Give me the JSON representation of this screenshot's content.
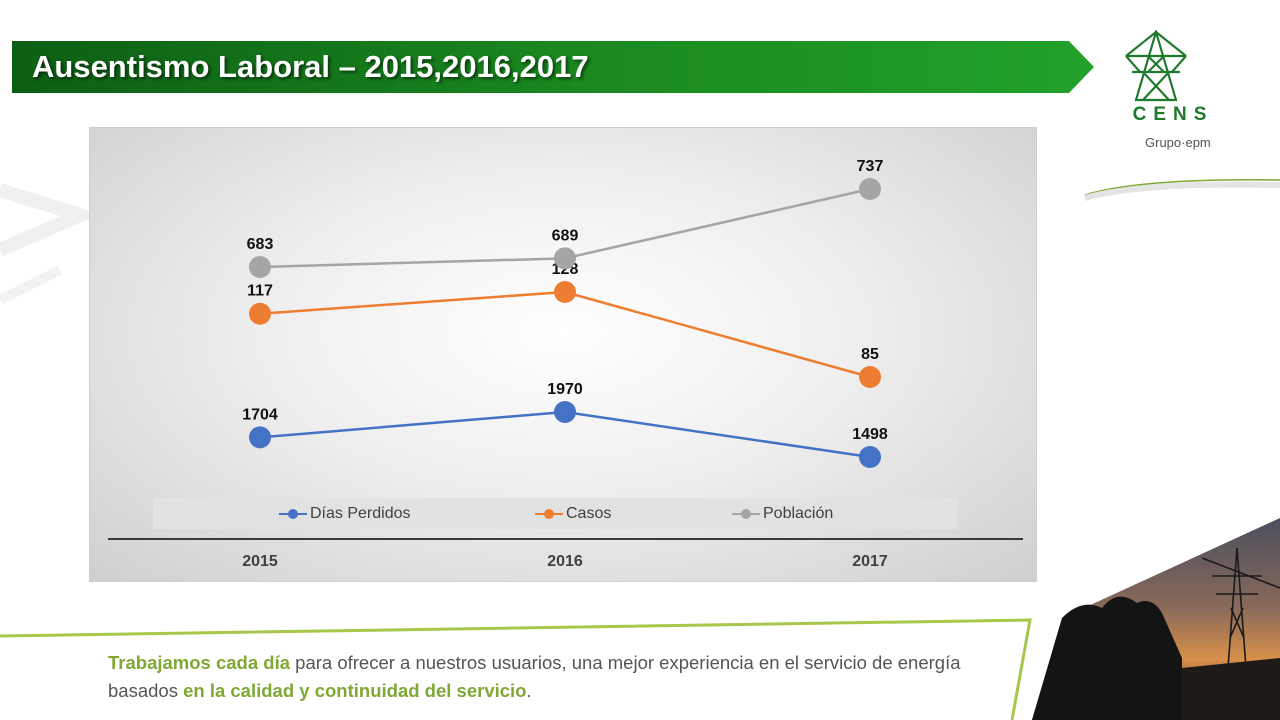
{
  "slide": {
    "title": "Ausentismo Laboral – 2015,2016,2017",
    "footer": {
      "part1": "Trabajamos cada día",
      "part2": " para ofrecer a nuestros usuarios, una mejor experiencia en el servicio de energía basados ",
      "part3": "en la calidad y continuidad del servicio",
      "part4": "."
    }
  },
  "logo": {
    "name": "CENS",
    "subtitle": "Grupo·epm",
    "icon": "transmission-tower-icon"
  },
  "colors": {
    "banner_green": "#1a8a20",
    "accent_green": "#7fa834",
    "series_dias": "#4472c4",
    "series_casos": "#ed7d31",
    "series_poblacion": "#a5a5a5"
  },
  "chart_data": {
    "type": "line",
    "categories": [
      "2015",
      "2016",
      "2017"
    ],
    "series": [
      {
        "name": "Días Perdidos",
        "values": [
          1704,
          1970,
          1498
        ],
        "color": "#4472c4"
      },
      {
        "name": "Casos",
        "values": [
          117,
          128,
          85
        ],
        "color": "#ed7d31"
      },
      {
        "name": "Población",
        "values": [
          683,
          689,
          737
        ],
        "color": "#a5a5a5"
      }
    ],
    "legend_position": "bottom",
    "grid": false,
    "data_labels": true,
    "axis_ranges_note": "each series is plotted on its own vertical scale; no y-axis shown"
  }
}
